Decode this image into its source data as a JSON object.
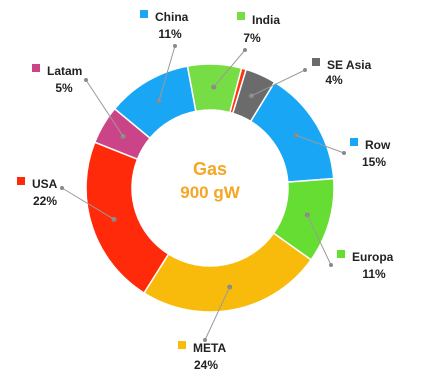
{
  "chart_data": {
    "type": "pie",
    "style": "donut",
    "center_label": [
      "Gas",
      "900 gW"
    ],
    "center_color": "#f5a623",
    "slices": [
      {
        "name": "India",
        "pct_label": "7%",
        "value": 7,
        "color": "#77dd44"
      },
      {
        "name": "",
        "pct_label": "",
        "value": 0.6,
        "color": "#ff3311"
      },
      {
        "name": "SE Asia",
        "pct_label": "4%",
        "value": 4,
        "color": "#6b6b6b"
      },
      {
        "name": "Row",
        "pct_label": "15%",
        "value": 15,
        "color": "#19a7f5"
      },
      {
        "name": "Europa",
        "pct_label": "11%",
        "value": 11,
        "color": "#66dd33"
      },
      {
        "name": "META",
        "pct_label": "24%",
        "value": 24,
        "color": "#f8bb0c"
      },
      {
        "name": "USA",
        "pct_label": "22%",
        "value": 22,
        "color": "#ff2a0a"
      },
      {
        "name": "Latam",
        "pct_label": "5%",
        "value": 5,
        "color": "#cc4488"
      },
      {
        "name": "China",
        "pct_label": "11%",
        "value": 11,
        "color": "#19a7f5"
      }
    ]
  }
}
